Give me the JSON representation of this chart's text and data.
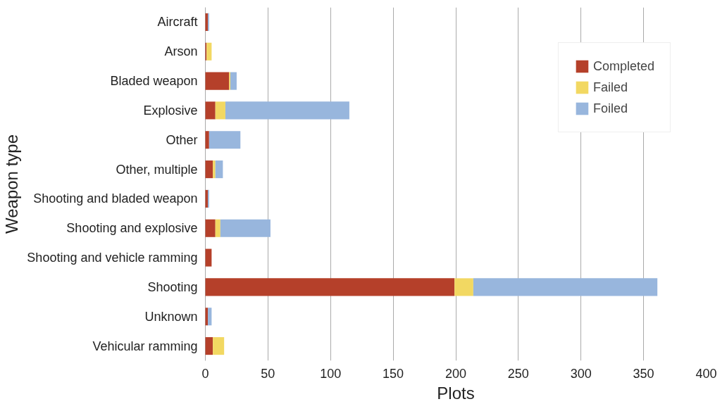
{
  "chart_data": {
    "type": "bar",
    "orientation": "horizontal",
    "stacked": true,
    "xlabel": "Plots",
    "ylabel": "Weapon type",
    "categories": [
      "Aircraft",
      "Arson",
      "Bladed weapon",
      "Explosive",
      "Other",
      "Other, multiple",
      "Shooting and bladed weapon",
      "Shooting and explosive",
      "Shooting and vehicle ramming",
      "Shooting",
      "Unknown",
      "Vehicular ramming"
    ],
    "series": [
      {
        "name": "Completed",
        "color": "#b5402a",
        "values": [
          2,
          1,
          19,
          8,
          3,
          6,
          2,
          8,
          5,
          199,
          2,
          6
        ]
      },
      {
        "name": "Failed",
        "color": "#f2d862",
        "values": [
          0,
          4,
          1,
          8,
          0,
          2,
          0,
          4,
          0,
          15,
          0,
          9
        ]
      },
      {
        "name": "Foiled",
        "color": "#98b6dd",
        "values": [
          1,
          0,
          5,
          99,
          25,
          6,
          1,
          40,
          0,
          147,
          3,
          0
        ]
      }
    ],
    "xlim": [
      0,
      400
    ],
    "xticks": [
      0,
      50,
      100,
      150,
      200,
      250,
      300,
      350,
      400
    ],
    "grid": "x",
    "legend": "top right"
  }
}
